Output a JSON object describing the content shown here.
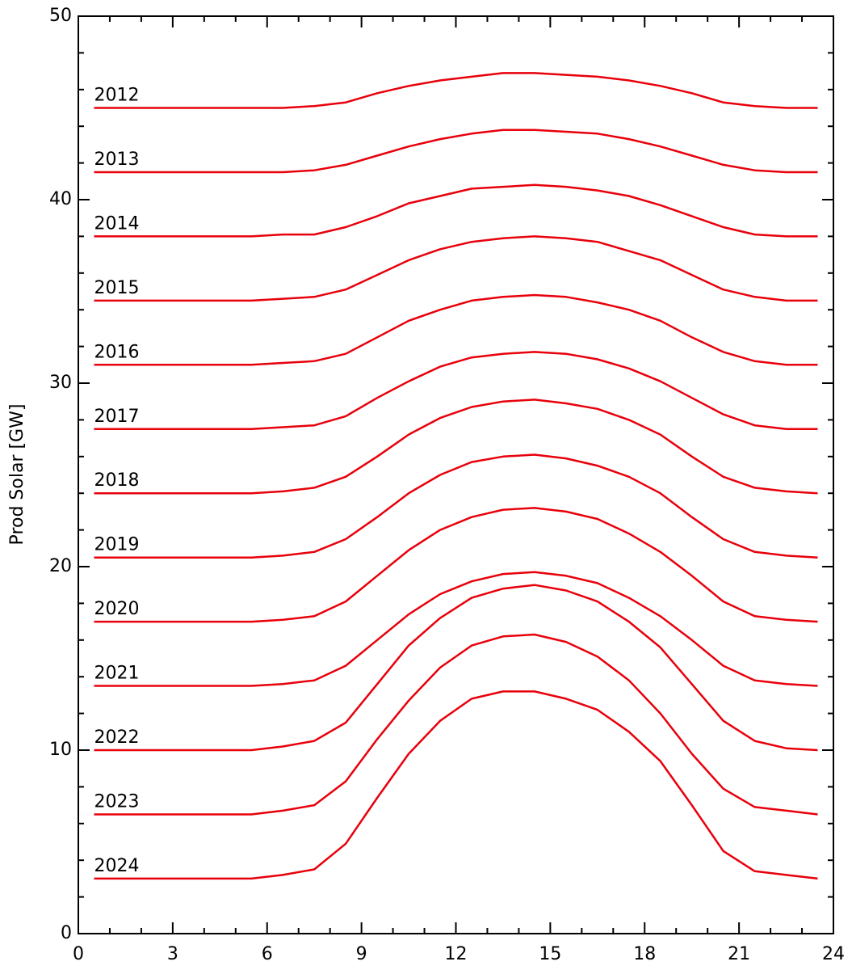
{
  "chart_data": {
    "type": "line",
    "y_label": "Prod Solar [GW]",
    "x": [
      0.5,
      1.5,
      2.5,
      3.5,
      4.5,
      5.5,
      6.5,
      7.5,
      8.5,
      9.5,
      10.5,
      11.5,
      12.5,
      13.5,
      14.5,
      15.5,
      16.5,
      17.5,
      18.5,
      19.5,
      20.5,
      21.5,
      22.5,
      23.5
    ],
    "xlim": [
      0,
      24
    ],
    "xticks": [
      0,
      3,
      6,
      9,
      12,
      15,
      18,
      21,
      24
    ],
    "ylim": [
      0,
      50
    ],
    "yticks": [
      0,
      10,
      20,
      30,
      40,
      50
    ],
    "series": [
      {
        "name": "2012",
        "color": "#e8000b",
        "values": [
          45,
          45,
          45,
          45,
          45,
          45,
          45,
          45.1,
          45.3,
          45.8,
          46.2,
          46.5,
          46.7,
          46.9,
          46.9,
          46.8,
          46.7,
          46.5,
          46.2,
          45.8,
          45.3,
          45.1,
          45,
          45
        ]
      },
      {
        "name": "2013",
        "color": "#e8000b",
        "values": [
          41.5,
          41.5,
          41.5,
          41.5,
          41.5,
          41.5,
          41.5,
          41.6,
          41.9,
          42.4,
          42.9,
          43.3,
          43.6,
          43.8,
          43.8,
          43.7,
          43.6,
          43.3,
          42.9,
          42.4,
          41.9,
          41.6,
          41.5,
          41.5
        ]
      },
      {
        "name": "2014",
        "color": "#e8000b",
        "values": [
          38,
          38,
          38,
          38,
          38,
          38,
          38.1,
          38.1,
          38.5,
          39.1,
          39.8,
          40.2,
          40.6,
          40.7,
          40.8,
          40.7,
          40.5,
          40.2,
          39.7,
          39.1,
          38.5,
          38.1,
          38,
          38
        ]
      },
      {
        "name": "2015",
        "color": "#e8000b",
        "values": [
          34.5,
          34.5,
          34.5,
          34.5,
          34.5,
          34.5,
          34.6,
          34.7,
          35.1,
          35.9,
          36.7,
          37.3,
          37.7,
          37.9,
          38,
          37.9,
          37.7,
          37.2,
          36.7,
          35.9,
          35.1,
          34.7,
          34.5,
          34.5
        ]
      },
      {
        "name": "2016",
        "color": "#e8000b",
        "values": [
          31,
          31,
          31,
          31,
          31,
          31,
          31.1,
          31.2,
          31.6,
          32.5,
          33.4,
          34,
          34.5,
          34.7,
          34.8,
          34.7,
          34.4,
          34,
          33.4,
          32.5,
          31.7,
          31.2,
          31,
          31
        ]
      },
      {
        "name": "2017",
        "color": "#e8000b",
        "values": [
          27.5,
          27.5,
          27.5,
          27.5,
          27.5,
          27.5,
          27.6,
          27.7,
          28.2,
          29.2,
          30.1,
          30.9,
          31.4,
          31.6,
          31.7,
          31.6,
          31.3,
          30.8,
          30.1,
          29.2,
          28.3,
          27.7,
          27.5,
          27.5
        ]
      },
      {
        "name": "2018",
        "color": "#e8000b",
        "values": [
          24,
          24,
          24,
          24,
          24,
          24,
          24.1,
          24.3,
          24.9,
          26,
          27.2,
          28.1,
          28.7,
          29,
          29.1,
          28.9,
          28.6,
          28,
          27.2,
          26,
          24.9,
          24.3,
          24.1,
          24
        ]
      },
      {
        "name": "2019",
        "color": "#e8000b",
        "values": [
          20.5,
          20.5,
          20.5,
          20.5,
          20.5,
          20.5,
          20.6,
          20.8,
          21.5,
          22.7,
          24,
          25,
          25.7,
          26,
          26.1,
          25.9,
          25.5,
          24.9,
          24,
          22.7,
          21.5,
          20.8,
          20.6,
          20.5
        ]
      },
      {
        "name": "2020",
        "color": "#e8000b",
        "values": [
          17,
          17,
          17,
          17,
          17,
          17,
          17.1,
          17.3,
          18.1,
          19.5,
          20.9,
          22,
          22.7,
          23.1,
          23.2,
          23,
          22.6,
          21.8,
          20.8,
          19.5,
          18.1,
          17.3,
          17.1,
          17
        ]
      },
      {
        "name": "2021",
        "color": "#e8000b",
        "values": [
          13.5,
          13.5,
          13.5,
          13.5,
          13.5,
          13.5,
          13.6,
          13.8,
          14.6,
          16,
          17.4,
          18.5,
          19.2,
          19.6,
          19.7,
          19.5,
          19.1,
          18.3,
          17.3,
          16,
          14.6,
          13.8,
          13.6,
          13.5
        ]
      },
      {
        "name": "2022",
        "color": "#e8000b",
        "values": [
          10,
          10,
          10,
          10,
          10,
          10,
          10.2,
          10.5,
          11.5,
          13.6,
          15.7,
          17.2,
          18.3,
          18.8,
          19,
          18.7,
          18.1,
          17,
          15.6,
          13.6,
          11.6,
          10.5,
          10.1,
          10
        ]
      },
      {
        "name": "2023",
        "color": "#e8000b",
        "values": [
          6.5,
          6.5,
          6.5,
          6.5,
          6.5,
          6.5,
          6.7,
          7,
          8.3,
          10.6,
          12.7,
          14.5,
          15.7,
          16.2,
          16.3,
          15.9,
          15.1,
          13.8,
          12,
          9.8,
          7.9,
          6.9,
          6.7,
          6.5
        ]
      },
      {
        "name": "2024",
        "color": "#e8000b",
        "values": [
          3,
          3,
          3,
          3,
          3,
          3,
          3.2,
          3.5,
          4.9,
          7.4,
          9.8,
          11.6,
          12.8,
          13.2,
          13.2,
          12.8,
          12.2,
          11,
          9.4,
          7,
          4.5,
          3.4,
          3.2,
          3
        ]
      }
    ]
  }
}
